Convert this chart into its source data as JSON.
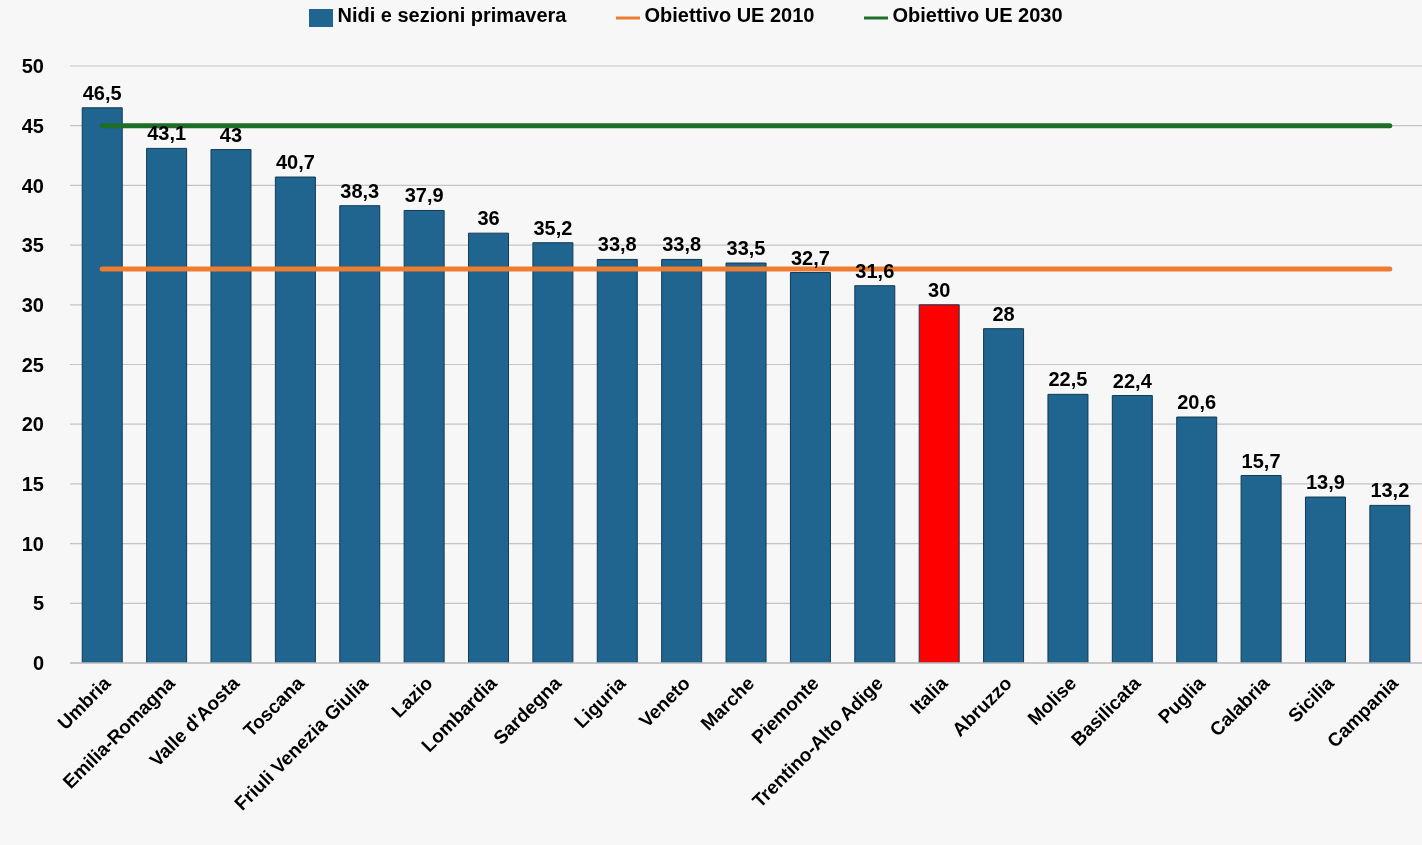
{
  "chart_data": {
    "type": "bar",
    "categories": [
      "Umbria",
      "Emilia-Romagna",
      "Valle d'Aosta",
      "Toscana",
      "Friuli Venezia Giulia",
      "Lazio",
      "Lombardia",
      "Sardegna",
      "Liguria",
      "Veneto",
      "Marche",
      "Piemonte",
      "Trentino-Alto Adige",
      "Italia",
      "Abruzzo",
      "Molise",
      "Basilicata",
      "Puglia",
      "Calabria",
      "Sicilia",
      "Campania"
    ],
    "series": [
      {
        "name": "Nidi e sezioni primavera",
        "type": "bar",
        "color": "#1f6590",
        "colors": [
          "#1f6590",
          "#1f6590",
          "#1f6590",
          "#1f6590",
          "#1f6590",
          "#1f6590",
          "#1f6590",
          "#1f6590",
          "#1f6590",
          "#1f6590",
          "#1f6590",
          "#1f6590",
          "#1f6590",
          "#ff0000",
          "#1f6590",
          "#1f6590",
          "#1f6590",
          "#1f6590",
          "#1f6590",
          "#1f6590",
          "#1f6590"
        ],
        "values": [
          46.5,
          43.1,
          43,
          40.7,
          38.3,
          37.9,
          36,
          35.2,
          33.8,
          33.8,
          33.5,
          32.7,
          31.6,
          30,
          28,
          22.5,
          22.4,
          20.6,
          15.7,
          13.9,
          13.2
        ],
        "value_labels": [
          "46,5",
          "43,1",
          "43",
          "40,7",
          "38,3",
          "37,9",
          "36",
          "35,2",
          "33,8",
          "33,8",
          "33,5",
          "32,7",
          "31,6",
          "30",
          "28",
          "22,5",
          "22,4",
          "20,6",
          "15,7",
          "13,9",
          "13,2"
        ]
      },
      {
        "name": "Obiettivo UE 2010",
        "type": "line",
        "color": "#ed7d31",
        "values": [
          33,
          33,
          33,
          33,
          33,
          33,
          33,
          33,
          33,
          33,
          33,
          33,
          33,
          33,
          33,
          33,
          33,
          33,
          33,
          33,
          33
        ]
      },
      {
        "name": "Obiettivo UE 2030",
        "type": "line",
        "color": "#1e6e28",
        "values": [
          45,
          45,
          45,
          45,
          45,
          45,
          45,
          45,
          45,
          45,
          45,
          45,
          45,
          45,
          45,
          45,
          45,
          45,
          45,
          45,
          45
        ]
      }
    ],
    "ylim": [
      0,
      50
    ],
    "yticks": [
      0,
      5,
      10,
      15,
      20,
      25,
      30,
      35,
      40,
      45,
      50
    ],
    "grid": "y",
    "legend": "top",
    "marker": "none"
  }
}
